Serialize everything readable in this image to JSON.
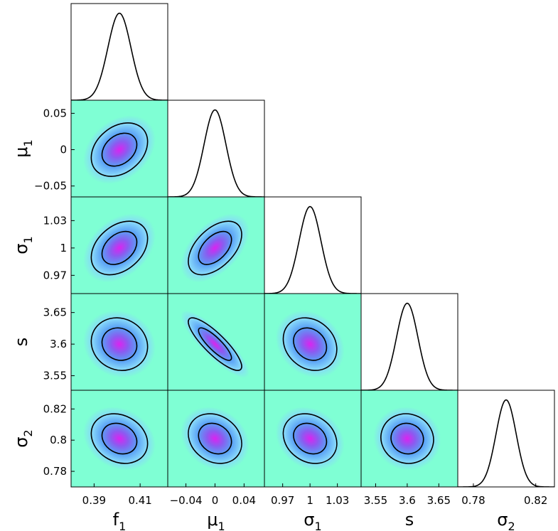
{
  "chart_data": {
    "type": "corner",
    "parameters": [
      {
        "symbol": "f",
        "subscript": "1",
        "mean": 0.401,
        "std": 0.005,
        "lim": [
          0.38,
          0.422
        ],
        "xticks": [
          0.39,
          0.41
        ]
      },
      {
        "symbol": "μ",
        "subscript": "1",
        "mean": 0,
        "std": 0.015,
        "lim": [
          -0.065,
          0.068
        ],
        "xticks": [
          {
            "value": -0.04,
            "label": "−0.04"
          },
          0,
          0.04
        ],
        "yticks": [
          {
            "value": -0.05,
            "label": "−0.05"
          },
          0,
          0.05
        ]
      },
      {
        "symbol": "σ",
        "subscript": "1",
        "mean": 1,
        "std": 0.012,
        "lim": [
          0.95,
          1.056
        ],
        "xticks": [
          0.97,
          1,
          1.03
        ],
        "yticks": [
          0.97,
          1,
          1.03
        ]
      },
      {
        "symbol": "s",
        "mean": 3.6,
        "std": 0.017,
        "lim": [
          3.527,
          3.68
        ],
        "xticks": [
          3.55,
          3.6,
          3.65
        ],
        "yticks": [
          3.55,
          3.6,
          3.65
        ]
      },
      {
        "symbol": "σ",
        "subscript": "2",
        "mean": 0.801,
        "std": 0.0065,
        "lim": [
          0.77,
          0.832
        ],
        "xticks": [
          0.78,
          0.82
        ],
        "yticks": [
          0.78,
          0.8,
          0.82
        ]
      }
    ],
    "correlations": [
      [
        0.3
      ],
      [
        0.35,
        0.5
      ],
      [
        -0.1,
        -0.85,
        -0.2
      ],
      [
        -0.2,
        -0.2,
        -0.2,
        -0.05
      ]
    ],
    "contour_levels": [
      0.68,
      0.95
    ],
    "colormap": [
      "#7fffd4",
      "#87d8fa",
      "#5aa0f5",
      "#8a5cf0",
      "#e020f0"
    ],
    "background": "#7fffd4",
    "line_color": "#000000"
  }
}
